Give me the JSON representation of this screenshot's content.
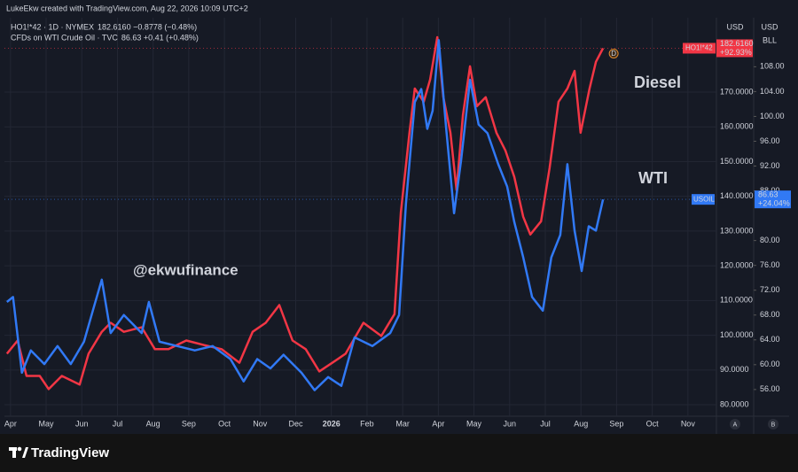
{
  "header": "LukeEkw created with TradingView.com, Aug 22, 2026 10:09 UTC+2",
  "footer": "TradingView",
  "chart_data": {
    "type": "line",
    "annotations": [
      "Diesel",
      "WTI",
      "@ekwufinance"
    ],
    "marker": "D",
    "scale_buttons": [
      "A",
      "B"
    ],
    "y_axis_label": "USD",
    "y2_axis_label": "USD",
    "y2_axis_unit": "BLL",
    "grid": true,
    "series": [
      {
        "name": "HO1!*42 · 1D · NYMEX",
        "quote": "182.6160 −0.8778 (−0.48%)",
        "symbol": "HO1!*42",
        "price_label": "182.6160",
        "change_label": "+92.93%",
        "color": "#f23645",
        "axis": "y",
        "x": [
          -0.1,
          0.2,
          0.45,
          0.82,
          1.07,
          1.44,
          1.94,
          2.19,
          2.56,
          2.81,
          3.18,
          3.68,
          4.05,
          4.43,
          4.93,
          5.42,
          5.92,
          6.42,
          6.79,
          7.16,
          7.54,
          7.91,
          8.28,
          8.66,
          9.03,
          9.4,
          9.9,
          10.4,
          10.77,
          10.95,
          11.19,
          11.34,
          11.59,
          11.77,
          11.97,
          12.14,
          12.34,
          12.51,
          12.69,
          12.89,
          13.08,
          13.33,
          13.63,
          13.88,
          14.13,
          14.38,
          14.58,
          14.88,
          15.12,
          15.37,
          15.62,
          15.82,
          15.99,
          16.24,
          16.42,
          16.62
        ],
        "values": [
          94.7,
          98.5,
          88.3,
          88.3,
          84.5,
          88.3,
          85.8,
          94.7,
          101.0,
          103.6,
          101.0,
          102.3,
          96.0,
          96.0,
          98.5,
          97.2,
          96.0,
          92.1,
          101.0,
          103.6,
          108.7,
          98.5,
          96.0,
          89.6,
          92.1,
          94.7,
          103.6,
          99.8,
          106.1,
          135.4,
          158.3,
          171.0,
          167.2,
          173.6,
          185.8,
          168.5,
          158.3,
          141.8,
          163.4,
          177.4,
          165.9,
          168.5,
          158.3,
          153.2,
          145.6,
          134.1,
          129.0,
          132.8,
          148.1,
          167.2,
          171.0,
          176.1,
          158.3,
          171.0,
          178.7,
          182.616
        ]
      },
      {
        "name": "CFDs on WTI Crude Oil · TVC",
        "quote": "86.63 +0.41 (+0.48%)",
        "symbol": "USOIL",
        "price_label": "86.63",
        "change_label": "+24.04%",
        "color": "#3179f5",
        "axis": "y2",
        "x": [
          -0.1,
          0.07,
          0.32,
          0.57,
          0.95,
          1.32,
          1.69,
          2.06,
          2.31,
          2.56,
          2.81,
          3.18,
          3.68,
          3.88,
          4.18,
          4.68,
          5.17,
          5.67,
          6.17,
          6.54,
          6.92,
          7.29,
          7.66,
          8.16,
          8.53,
          8.91,
          9.28,
          9.65,
          10.15,
          10.65,
          10.9,
          11.09,
          11.34,
          11.52,
          11.69,
          11.84,
          12.01,
          12.21,
          12.44,
          12.64,
          12.89,
          13.13,
          13.38,
          13.68,
          13.93,
          14.13,
          14.38,
          14.63,
          14.93,
          15.17,
          15.42,
          15.62,
          15.82,
          16.02,
          16.22,
          16.42,
          16.62
        ],
        "values": [
          70.1,
          70.9,
          58.7,
          62.3,
          60.1,
          63.0,
          60.1,
          63.7,
          68.7,
          73.7,
          65.1,
          68.0,
          65.1,
          70.1,
          63.7,
          63.0,
          62.3,
          63.0,
          60.9,
          57.3,
          60.9,
          59.4,
          61.6,
          58.7,
          55.9,
          58.0,
          56.6,
          64.4,
          63.0,
          65.1,
          68.0,
          85.9,
          102.3,
          104.4,
          98.0,
          100.9,
          112.3,
          98.7,
          84.4,
          93.0,
          105.9,
          98.7,
          97.3,
          92.3,
          88.7,
          83.0,
          77.3,
          70.9,
          68.7,
          77.3,
          80.9,
          92.3,
          81.6,
          75.1,
          82.3,
          81.6,
          86.63
        ]
      }
    ],
    "xlim": [
      -0.17,
      19.8
    ],
    "xticks": [
      {
        "value": 0,
        "label": "Apr"
      },
      {
        "value": 1,
        "label": "May"
      },
      {
        "value": 2,
        "label": "Jun"
      },
      {
        "value": 3,
        "label": "Jul"
      },
      {
        "value": 4,
        "label": "Aug"
      },
      {
        "value": 5,
        "label": "Sep"
      },
      {
        "value": 6,
        "label": "Oct"
      },
      {
        "value": 7,
        "label": "Nov"
      },
      {
        "value": 8,
        "label": "Dec"
      },
      {
        "value": 9,
        "label": "2026"
      },
      {
        "value": 10,
        "label": "Feb"
      },
      {
        "value": 11,
        "label": "Mar"
      },
      {
        "value": 12,
        "label": "Apr"
      },
      {
        "value": 13,
        "label": "May"
      },
      {
        "value": 14,
        "label": "Jun"
      },
      {
        "value": 15,
        "label": "Jul"
      },
      {
        "value": 16,
        "label": "Aug"
      },
      {
        "value": 17,
        "label": "Sep"
      },
      {
        "value": 18,
        "label": "Oct"
      },
      {
        "value": 19,
        "label": "Nov"
      }
    ],
    "ylim": [
      76.7,
      191.4
    ],
    "yticks": [
      {
        "value": 80,
        "label": "80.0000"
      },
      {
        "value": 90,
        "label": "90.0000"
      },
      {
        "value": 100,
        "label": "100.0000"
      },
      {
        "value": 110,
        "label": "110.0000"
      },
      {
        "value": 120,
        "label": "120.0000"
      },
      {
        "value": 130,
        "label": "130.0000"
      },
      {
        "value": 140,
        "label": "140.0000"
      },
      {
        "value": 150,
        "label": "150.0000"
      },
      {
        "value": 160,
        "label": "160.0000"
      },
      {
        "value": 170,
        "label": "170.0000"
      }
    ],
    "y2lim": [
      51.7,
      115.9
    ],
    "y2ticks": [
      {
        "value": 56,
        "label": "56.00"
      },
      {
        "value": 60,
        "label": "60.00"
      },
      {
        "value": 64,
        "label": "64.00"
      },
      {
        "value": 68,
        "label": "68.00"
      },
      {
        "value": 72,
        "label": "72.00"
      },
      {
        "value": 76,
        "label": "76.00"
      },
      {
        "value": 80,
        "label": "80.00"
      },
      {
        "value": 88,
        "label": "88.00"
      },
      {
        "value": 92,
        "label": "92.00"
      },
      {
        "value": 96,
        "label": "96.00"
      },
      {
        "value": 100,
        "label": "100.00"
      },
      {
        "value": 104,
        "label": "104.00"
      },
      {
        "value": 108,
        "label": "108.00"
      }
    ]
  }
}
